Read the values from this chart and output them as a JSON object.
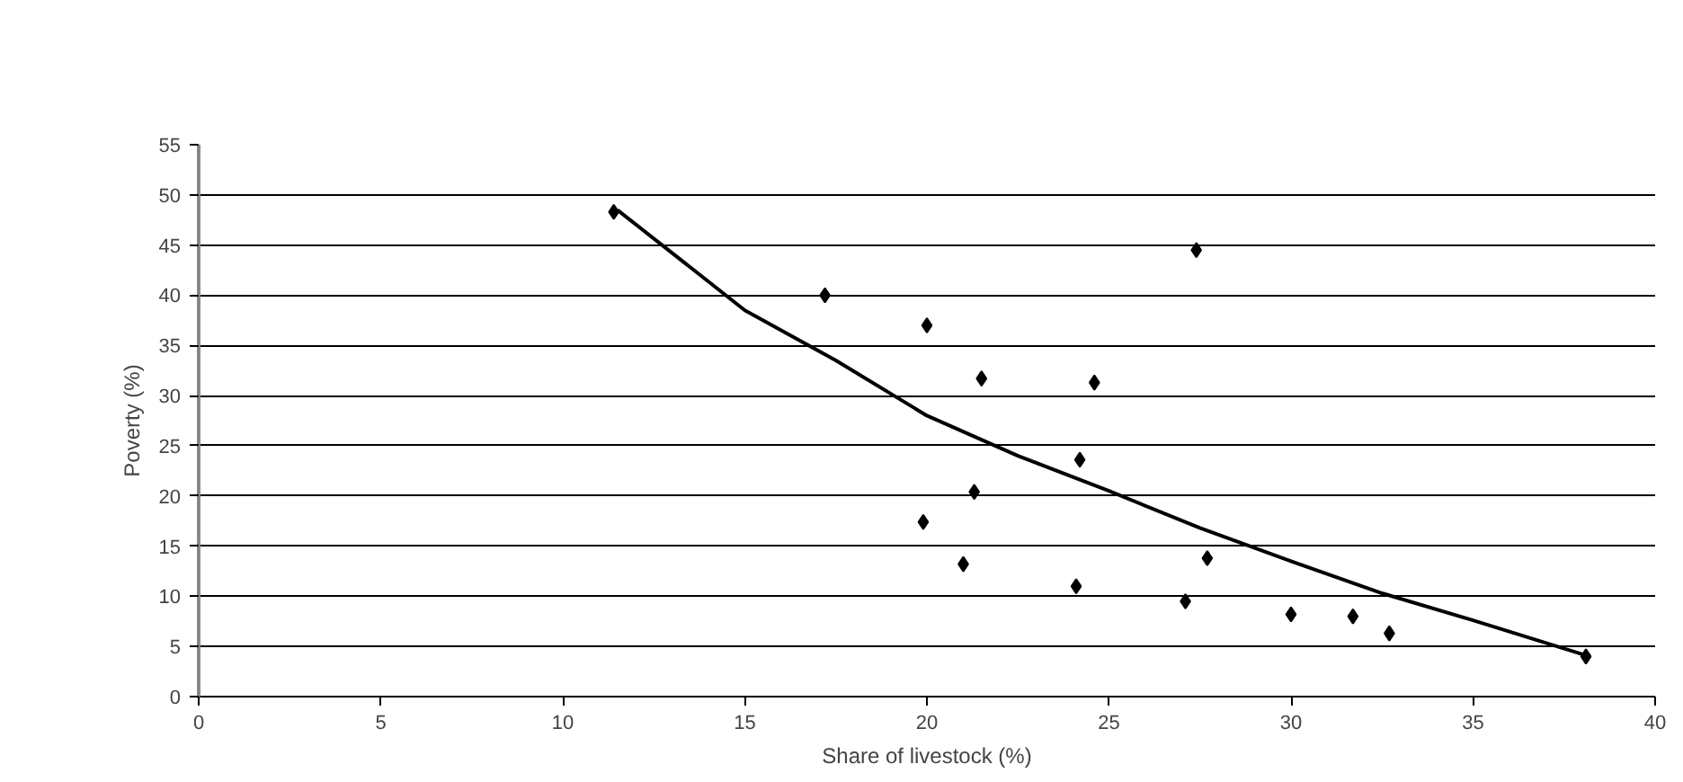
{
  "chart_data": {
    "type": "scatter",
    "xlabel": "Share of livestock (%)",
    "ylabel": "Poverty (%)",
    "xlim": [
      0,
      40
    ],
    "ylim": [
      0,
      55
    ],
    "xticks": [
      0,
      5,
      10,
      15,
      20,
      25,
      30,
      35,
      40
    ],
    "yticks": [
      0,
      5,
      10,
      15,
      20,
      25,
      30,
      35,
      40,
      45,
      50,
      55
    ],
    "grid": "y",
    "series": [
      {
        "marker": "diamond",
        "color": "#000000",
        "x": [
          11.4,
          17.2,
          20.0,
          21.5,
          24.6,
          27.4,
          24.2,
          21.3,
          19.9,
          21.0,
          24.1,
          27.1,
          27.7,
          30.0,
          31.7,
          32.7,
          38.1
        ],
        "values": [
          48.3,
          40.0,
          37.0,
          31.7,
          31.3,
          44.5,
          23.6,
          20.4,
          17.4,
          13.2,
          11.0,
          9.5,
          13.8,
          8.2,
          8.0,
          6.3,
          4.0
        ]
      },
      {
        "type": "line",
        "color": "#000000",
        "x": [
          11.5,
          15,
          17.5,
          20,
          22.5,
          25,
          27.5,
          30,
          32.5,
          35,
          38.2
        ],
        "values": [
          48.5,
          38.5,
          33.5,
          28.0,
          24.0,
          20.5,
          16.8,
          13.5,
          10.3,
          7.6,
          4.0
        ]
      }
    ]
  }
}
